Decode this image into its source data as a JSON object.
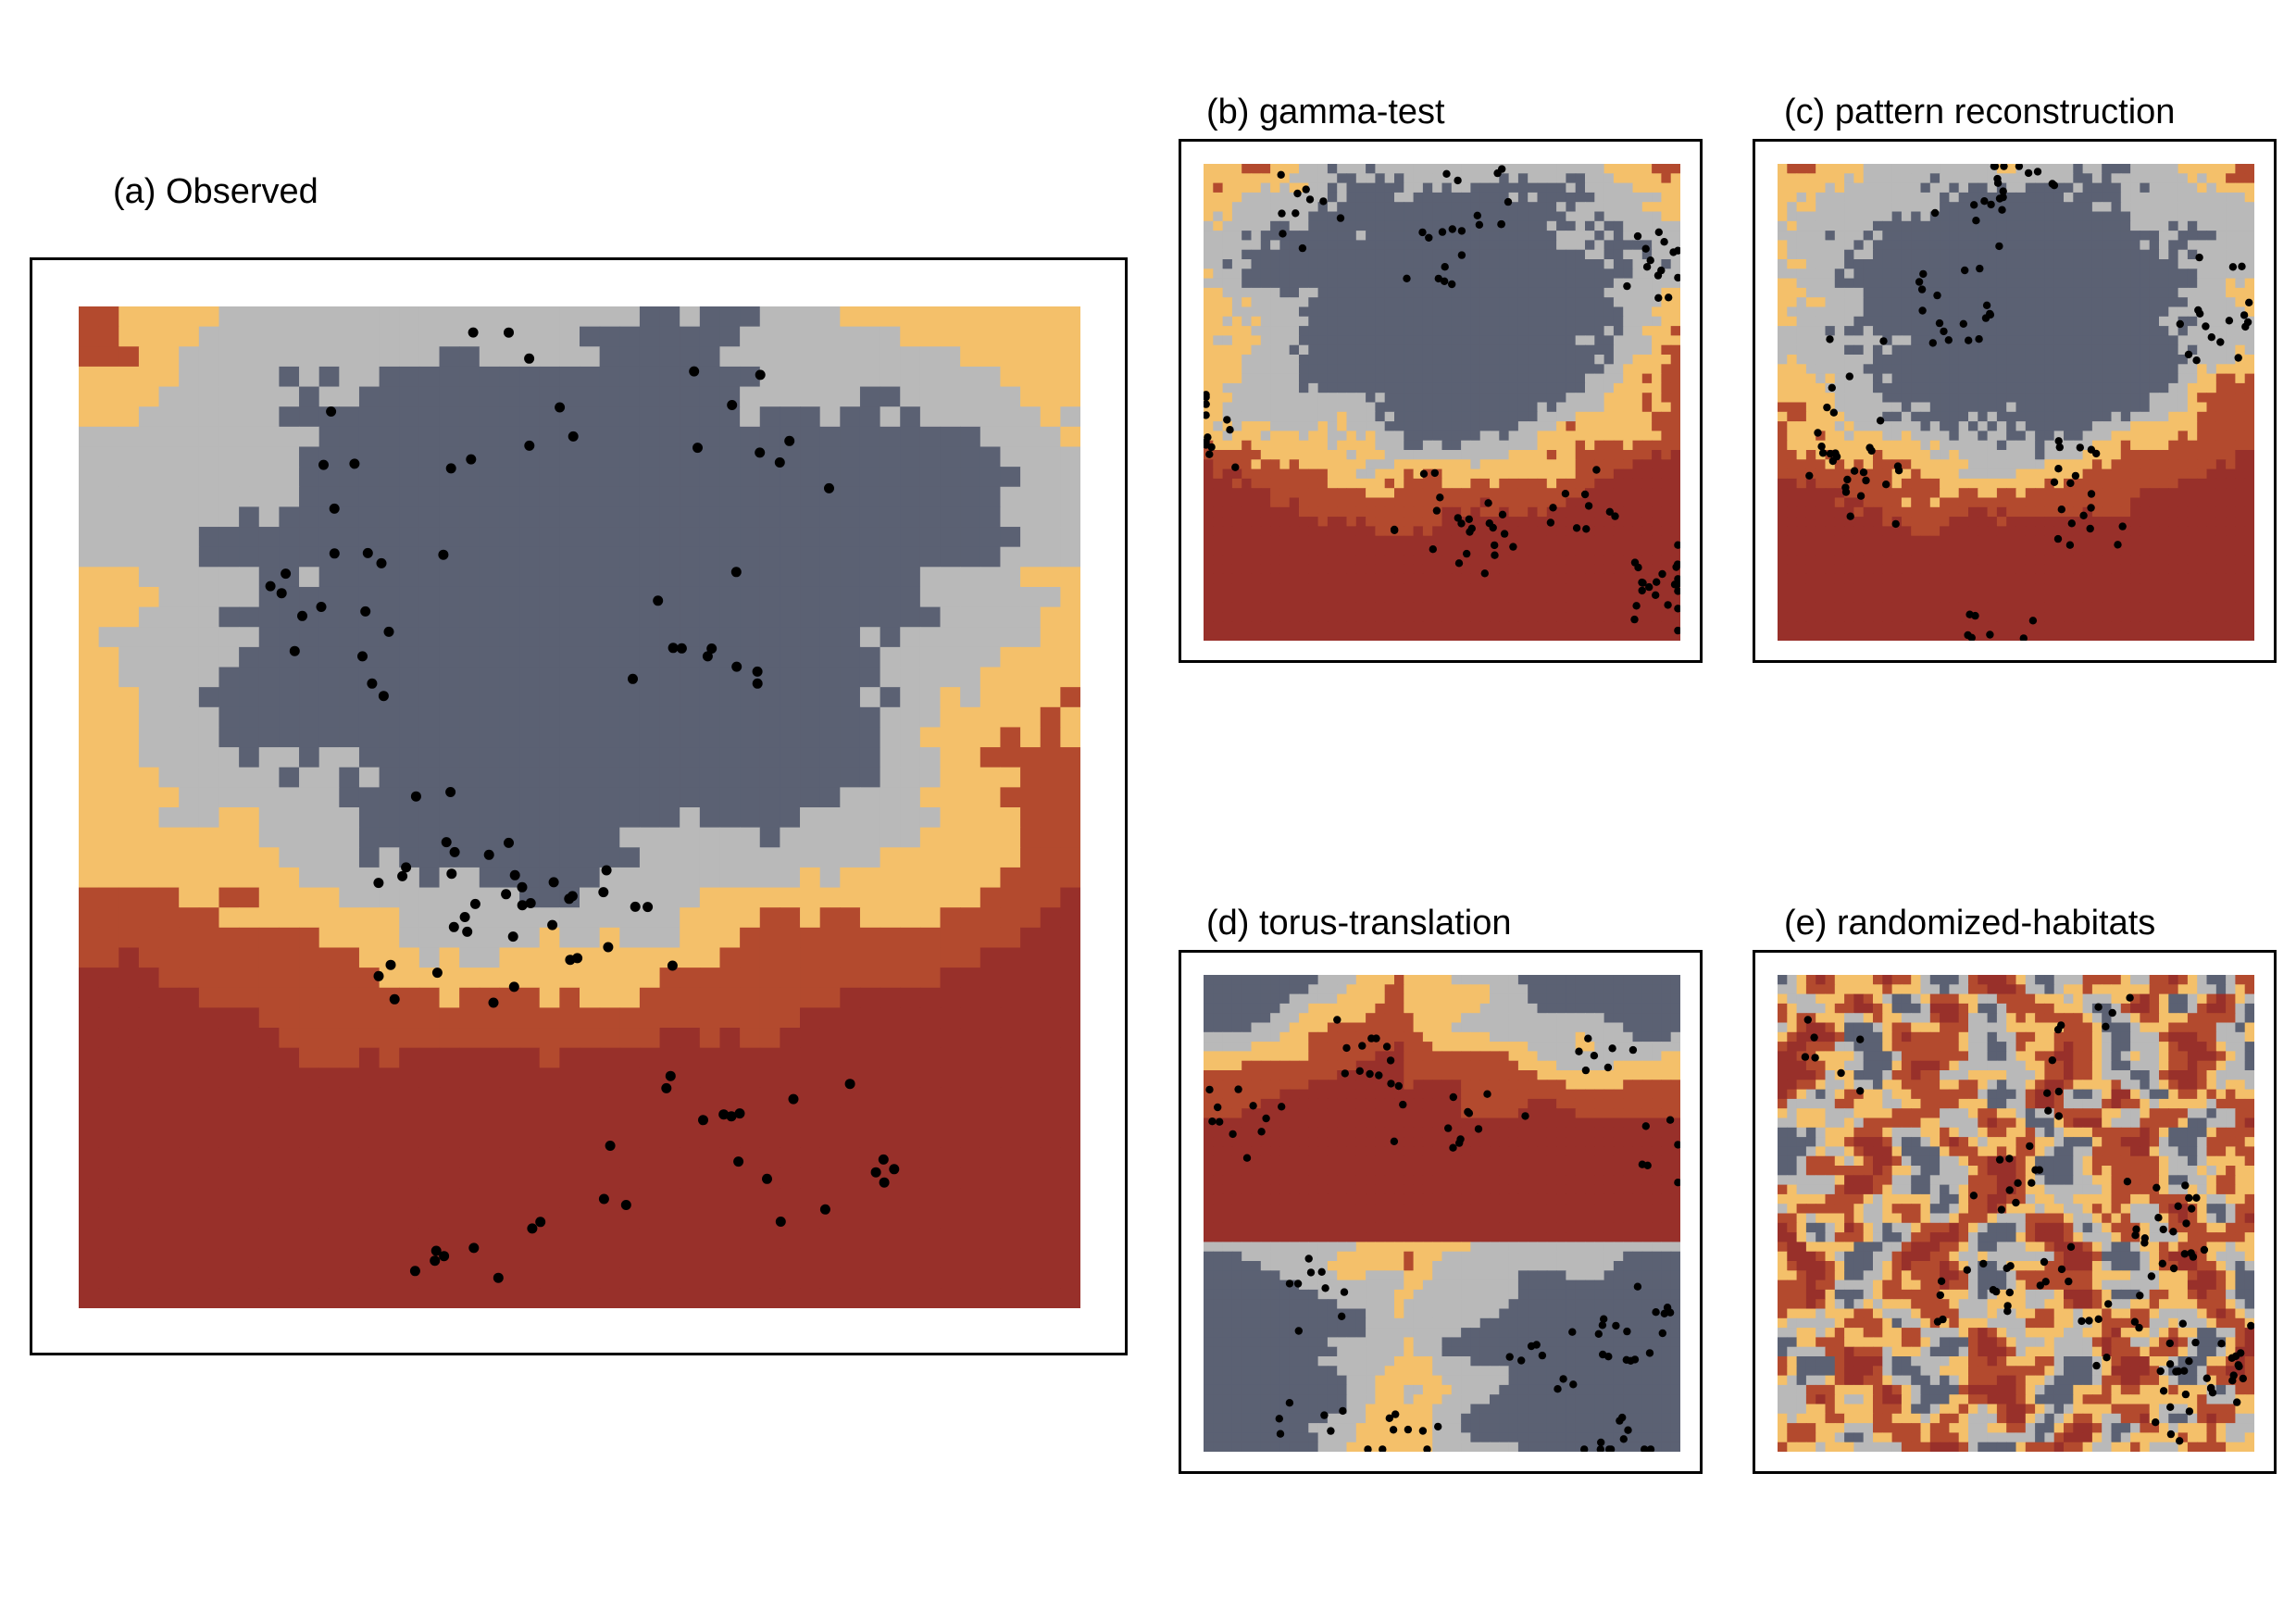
{
  "palette": {
    "slate": "#5b6173",
    "lightgray": "#b9b9b9",
    "amber": "#f4c06a",
    "rust": "#b34a2e",
    "darkred": "#98302a",
    "points": "#000000",
    "frame": "#000000"
  },
  "panels": [
    {
      "id": "a",
      "title": "(a) Observed",
      "variant": "observed",
      "seed": 11
    },
    {
      "id": "b",
      "title": "(b) gamma-test",
      "variant": "gamma",
      "seed": 23
    },
    {
      "id": "c",
      "title": "(c) pattern reconstruction",
      "variant": "reconstruction",
      "seed": 37
    },
    {
      "id": "d",
      "title": "(d) torus-translation",
      "variant": "torus",
      "seed": 41
    },
    {
      "id": "e",
      "title": "(e) randomized-habitats",
      "variant": "randomized",
      "seed": 53
    }
  ]
}
